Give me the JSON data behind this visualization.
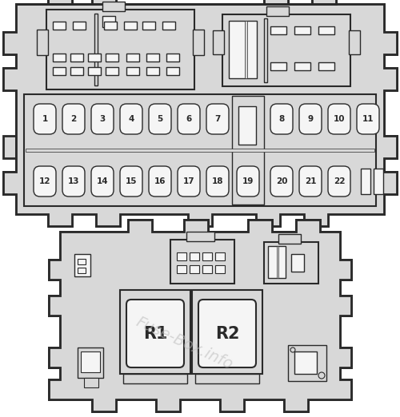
{
  "bg_color": "#ffffff",
  "fill_color": "#d8d8d8",
  "dark_fill": "#c8c8c8",
  "outline_color": "#2a2a2a",
  "white_fill": "#f5f5f5",
  "lw_main": 2.0,
  "lw_inner": 1.5,
  "lw_thin": 1.0,
  "fuse_row1": [
    1,
    2,
    3,
    4,
    5,
    6,
    7
  ],
  "fuse_row2": [
    12,
    13,
    14,
    15,
    16,
    17,
    18
  ],
  "fuse_row3": [
    8,
    9,
    10,
    11
  ],
  "fuse_row4": [
    20,
    21,
    22
  ],
  "watermark": "Fuse-Box.info",
  "watermark_color": "#bbbbbb",
  "watermark_alpha": 0.55
}
